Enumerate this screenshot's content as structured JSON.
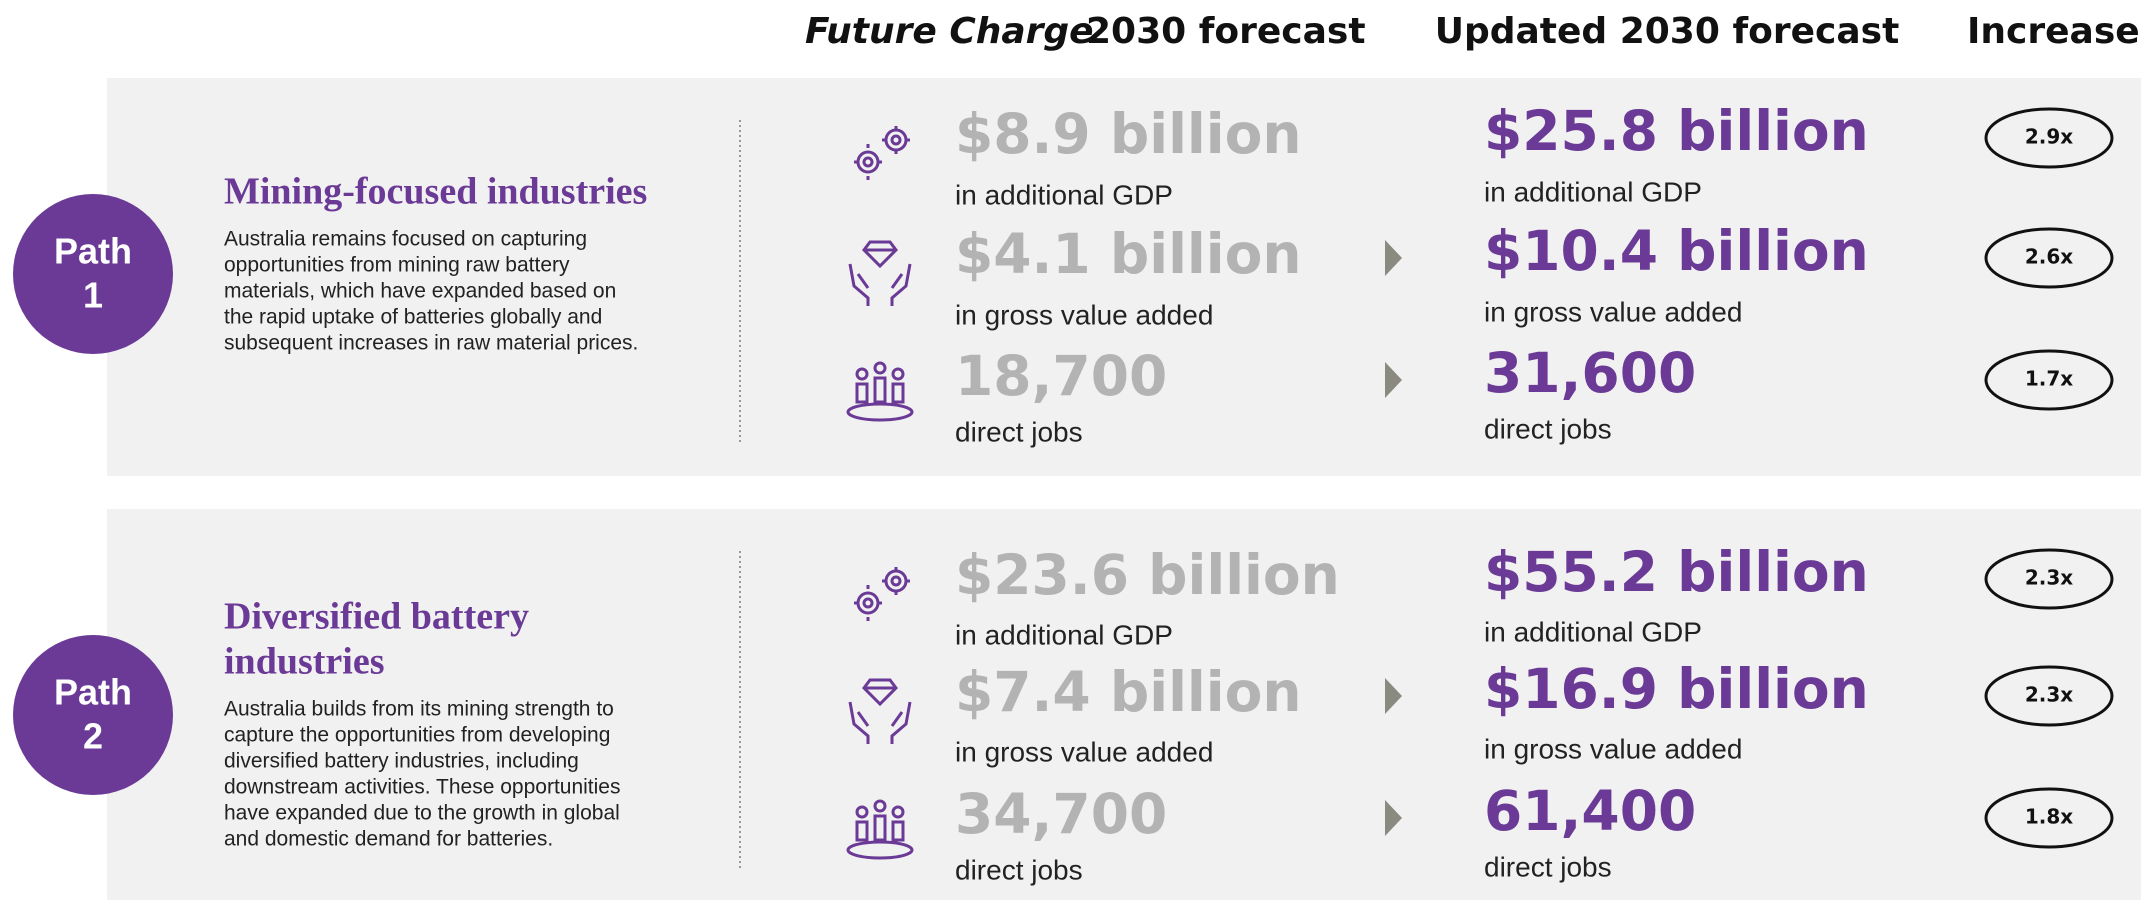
{
  "header": {
    "col1_italic": "Future Charge",
    "col1_rest": "2030 forecast",
    "col2": "Updated 2030 forecast",
    "col3": "Increase"
  },
  "paths": [
    {
      "badge_word": "Path",
      "badge_number": "1",
      "title": [
        "Mining-focused industries"
      ],
      "description": [
        "Australia remains focused on capturing",
        "opportunities from mining raw battery",
        "materials, which have expanded based on",
        "the rapid uptake of batteries globally and",
        "subsequent increases in raw material prices."
      ],
      "metrics": [
        {
          "old": "$8.9 billion",
          "new": "$25.8 billion",
          "unit": "in additional GDP",
          "increase": "2.9x"
        },
        {
          "old": "$4.1 billion",
          "new": "$10.4 billion",
          "unit": "in gross value added",
          "increase": "2.6x"
        },
        {
          "old": "18,700",
          "new": "31,600",
          "unit": "direct jobs",
          "increase": "1.7x"
        }
      ]
    },
    {
      "badge_word": "Path",
      "badge_number": "2",
      "title": [
        "Diversified battery",
        "industries"
      ],
      "description": [
        "Australia builds from its mining strength to",
        "capture the opportunities from developing",
        "diversified battery industries, including",
        "downstream activities. These opportunities",
        "have expanded due to the growth in global",
        "and domestic demand for batteries."
      ],
      "metrics": [
        {
          "old": "$23.6 billion",
          "new": "$55.2 billion",
          "unit": "in additional GDP",
          "increase": "2.3x"
        },
        {
          "old": "$7.4 billion",
          "new": "$16.9 billion",
          "unit": "in gross value added",
          "increase": "2.3x"
        },
        {
          "old": "34,700",
          "new": "61,400",
          "unit": "direct jobs",
          "increase": "1.8x"
        }
      ]
    }
  ]
}
